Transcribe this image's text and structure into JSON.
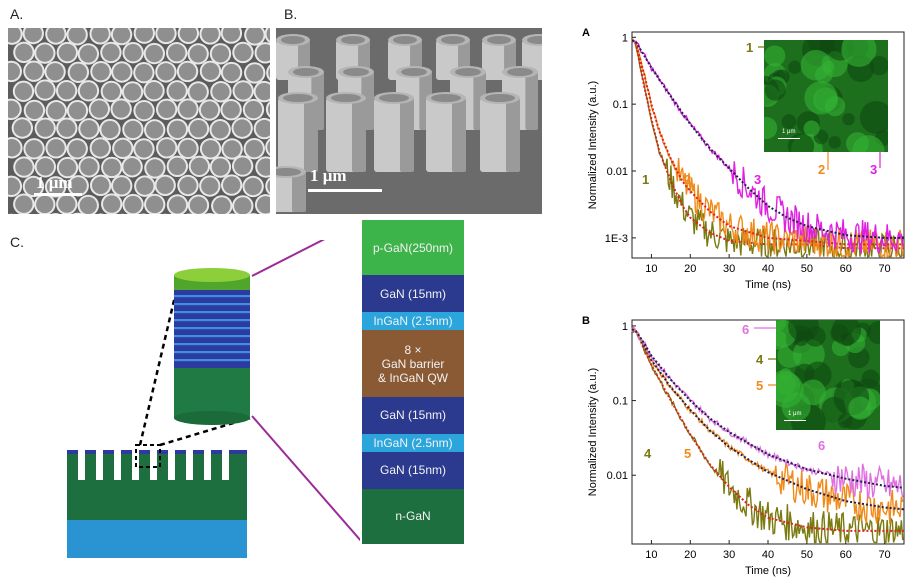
{
  "figure": {
    "panel_labels": {
      "sem_top": "A.",
      "sem_tilted": "B.",
      "schematic": "C.",
      "chart_top": "A",
      "chart_bottom": "B"
    },
    "scale_bars": {
      "sem_top": "1 μm",
      "sem_tilted": "1 μm",
      "inset_top": "1 μm",
      "inset_bottom": "1 μm"
    }
  },
  "layer_stack": [
    {
      "label": "p-GaN(250nm)",
      "color": "#3cb44a",
      "flex": 3
    },
    {
      "label": "GaN (15nm)",
      "color": "#2b3a8f",
      "flex": 2
    },
    {
      "label": "InGaN (2.5nm)",
      "color": "#2aa6dd",
      "flex": 1
    },
    {
      "label": "8 ×\nGaN barrier\n& InGaN QW",
      "color": "#8a5a35",
      "flex": 3.6
    },
    {
      "label": "GaN (15nm)",
      "color": "#2b3a8f",
      "flex": 2
    },
    {
      "label": "InGaN (2.5nm)",
      "color": "#2aa6dd",
      "flex": 1
    },
    {
      "label": "GaN (15nm)",
      "color": "#2b3a8f",
      "flex": 2
    },
    {
      "label": "n-GaN",
      "color": "#1d6f3f",
      "flex": 3
    }
  ],
  "colors": {
    "curve1": "#7a7a10",
    "curve2": "#f08a1a",
    "curve3": "#e020e0",
    "curve4": "#7a7a10",
    "curve5": "#f08a1a",
    "curve6": "#e070e0",
    "fit_dark": "#202050",
    "fit_red": "#e02020",
    "connector": "#9b2a9b"
  },
  "chart_data": [
    {
      "type": "line",
      "panel": "A",
      "xlabel": "Time (ns)",
      "ylabel": "Normalized Intensity (a.u.)",
      "log_y": true,
      "xlim": [
        5,
        75
      ],
      "ylim": [
        0.0005,
        1.2
      ],
      "x_ticks": [
        "10",
        "20",
        "30",
        "40",
        "50",
        "60",
        "70"
      ],
      "y_ticks": [
        "1",
        "0.1",
        "0.01",
        "1E-3"
      ],
      "series": [
        {
          "name": "1",
          "x": [
            5,
            6,
            8,
            10,
            12,
            15,
            18,
            20,
            25,
            30,
            40,
            50,
            60,
            70,
            75
          ],
          "y": [
            0.9,
            0.8,
            0.2,
            0.06,
            0.02,
            0.007,
            0.003,
            0.002,
            0.0012,
            0.0009,
            0.0008,
            0.0008,
            0.0007,
            0.0007,
            0.0007
          ]
        },
        {
          "name": "2",
          "x": [
            5,
            6,
            8,
            10,
            12,
            15,
            18,
            20,
            25,
            30,
            40,
            50,
            60,
            70,
            75
          ],
          "y": [
            0.9,
            0.8,
            0.3,
            0.1,
            0.04,
            0.015,
            0.007,
            0.005,
            0.0025,
            0.0015,
            0.001,
            0.0009,
            0.0008,
            0.0008,
            0.0008
          ]
        },
        {
          "name": "3",
          "x": [
            5,
            6,
            8,
            10,
            15,
            20,
            25,
            30,
            35,
            40,
            45,
            50,
            60,
            70,
            75
          ],
          "y": [
            0.9,
            0.85,
            0.55,
            0.35,
            0.13,
            0.05,
            0.022,
            0.011,
            0.0055,
            0.003,
            0.002,
            0.0015,
            0.0011,
            0.001,
            0.001
          ]
        }
      ],
      "annotations": [
        "1",
        "2",
        "3"
      ],
      "inset_markers": [
        "1",
        "2",
        "3"
      ]
    },
    {
      "type": "line",
      "panel": "B",
      "xlabel": "Time (ns)",
      "ylabel": "Normalized Intensity (a.u.)",
      "log_y": true,
      "xlim": [
        5,
        75
      ],
      "ylim": [
        0.0012,
        1.2
      ],
      "x_ticks": [
        "10",
        "20",
        "30",
        "40",
        "50",
        "60",
        "70"
      ],
      "y_ticks": [
        "1",
        "0.1",
        "0.01"
      ],
      "series": [
        {
          "name": "4",
          "x": [
            5,
            6,
            8,
            10,
            15,
            20,
            25,
            30,
            35,
            40,
            50,
            60,
            70,
            75
          ],
          "y": [
            0.9,
            0.85,
            0.5,
            0.3,
            0.1,
            0.035,
            0.014,
            0.007,
            0.004,
            0.0027,
            0.002,
            0.0018,
            0.0018,
            0.0018
          ]
        },
        {
          "name": "5",
          "x": [
            5,
            6,
            8,
            10,
            15,
            20,
            25,
            30,
            40,
            50,
            60,
            70,
            75
          ],
          "y": [
            0.9,
            0.85,
            0.55,
            0.35,
            0.15,
            0.075,
            0.04,
            0.024,
            0.011,
            0.0065,
            0.0045,
            0.0037,
            0.0035
          ]
        },
        {
          "name": "6",
          "x": [
            5,
            6,
            8,
            10,
            15,
            20,
            25,
            30,
            40,
            50,
            60,
            70,
            75
          ],
          "y": [
            0.9,
            0.85,
            0.6,
            0.4,
            0.19,
            0.1,
            0.058,
            0.038,
            0.019,
            0.012,
            0.009,
            0.0072,
            0.0068
          ]
        }
      ],
      "annotations": [
        "4",
        "5",
        "6"
      ],
      "inset_markers": [
        "6",
        "4",
        "5"
      ]
    }
  ]
}
